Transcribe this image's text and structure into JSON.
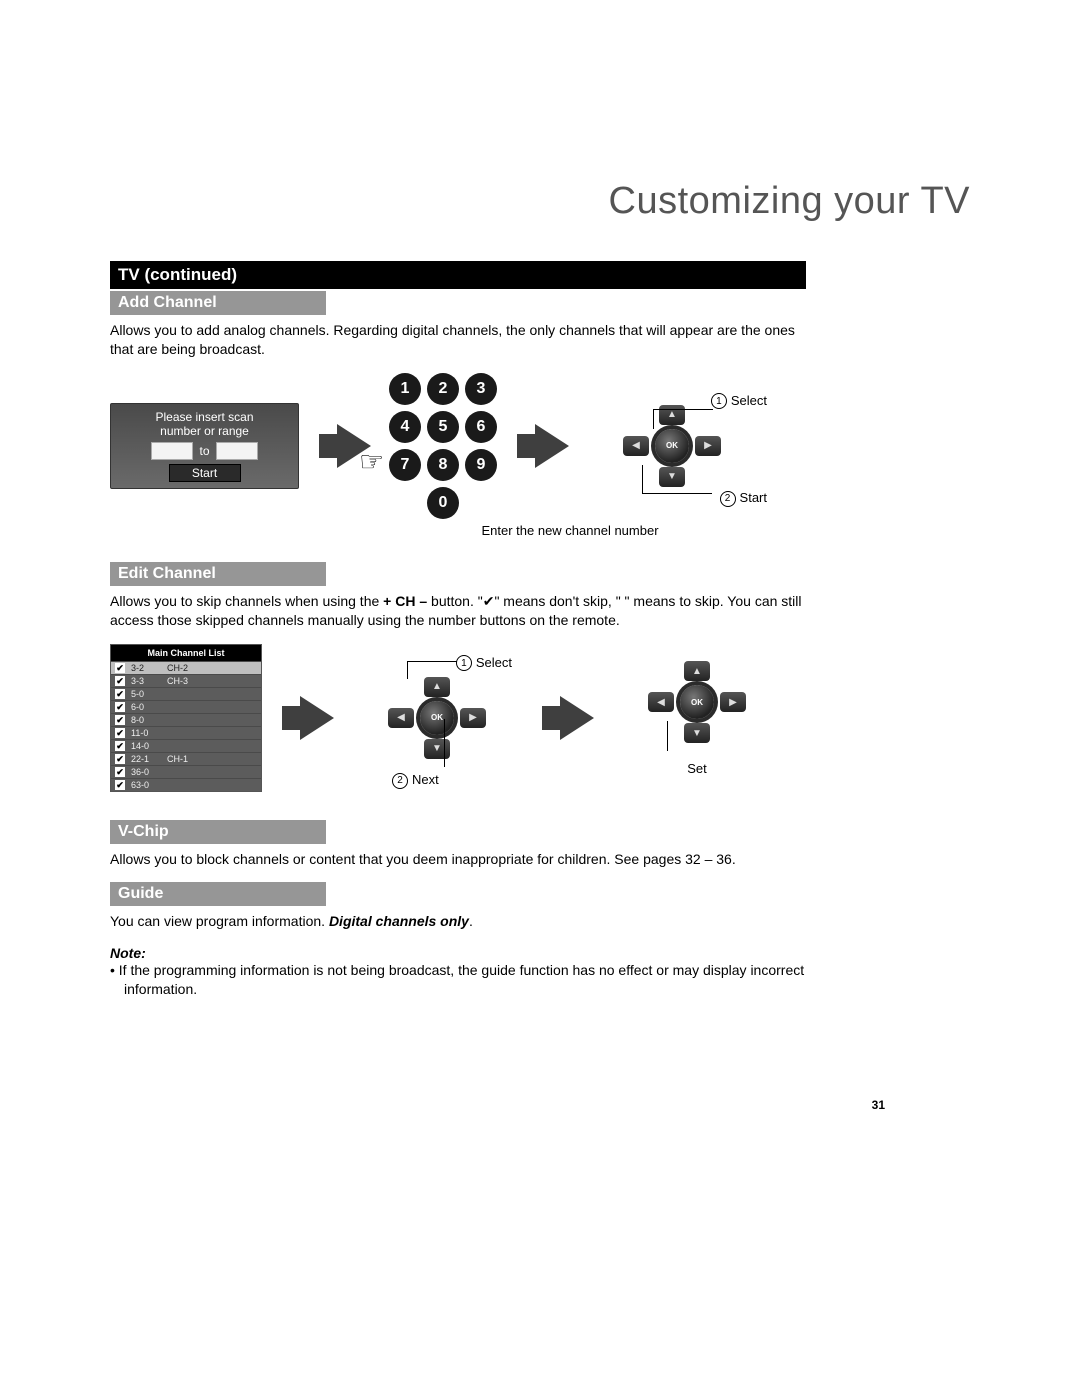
{
  "page_title": "Customizing your TV",
  "page_number": "31",
  "section_black": "TV (continued)",
  "add_channel": {
    "heading": "Add Channel",
    "body": "Allows you to add analog channels.  Regarding digital channels, the only channels that will appear are the ones that are being broadcast.",
    "dialog_line1": "Please insert scan",
    "dialog_line2": "number or range",
    "dialog_to": "to",
    "dialog_start": "Start",
    "keypad": [
      "1",
      "2",
      "3",
      "4",
      "5",
      "6",
      "7",
      "8",
      "9",
      "0"
    ],
    "keypad_caption": "Enter the new channel number",
    "dpad_select_label": "Select",
    "dpad_start_label": "Start",
    "ok_label": "OK"
  },
  "edit_channel": {
    "heading": "Edit Channel",
    "body_pre": "Allows you to skip channels when using the ",
    "body_bold": "+ CH –",
    "body_mid": " button.  \"",
    "body_check": "✔",
    "body_after_check": "\" means don't skip, \"  \" means to skip. You can still access those skipped channels manually using the number buttons on the remote.",
    "list_title": "Main Channel List",
    "rows": [
      {
        "ch": "3-2",
        "name": "CH-2",
        "hl": true
      },
      {
        "ch": "3-3",
        "name": "CH-3",
        "hl": false
      },
      {
        "ch": "5-0",
        "name": "",
        "hl": false
      },
      {
        "ch": "6-0",
        "name": "",
        "hl": false
      },
      {
        "ch": "8-0",
        "name": "",
        "hl": false
      },
      {
        "ch": "11-0",
        "name": "",
        "hl": false
      },
      {
        "ch": "14-0",
        "name": "",
        "hl": false
      },
      {
        "ch": "22-1",
        "name": "CH-1",
        "hl": false
      },
      {
        "ch": "36-0",
        "name": "",
        "hl": false
      },
      {
        "ch": "63-0",
        "name": "",
        "hl": false
      }
    ],
    "select_label": "Select",
    "next_label": "Next",
    "set_label": "Set",
    "ok_label": "OK"
  },
  "vchip": {
    "heading": "V-Chip",
    "body": "Allows you to block channels or content that you deem inappropriate for children.  See pages 32 – 36."
  },
  "guide": {
    "heading": "Guide",
    "body_plain": "You can view program information.  ",
    "body_italic": "Digital channels only",
    "body_after": ".",
    "note_label": "Note:",
    "note_bullet": "•  If the programming information is not being broadcast, the guide function has no effect or may display incorrect information."
  },
  "colors": {
    "section_black_bg": "#000000",
    "section_grey_bg": "#969696",
    "page_title_color": "#555555",
    "keypad_bg": "#1a1a1a",
    "arrow_color": "#3f3f3f",
    "dialog_bg_top": "#4a4a4a",
    "dialog_bg_bottom": "#6a6a6a",
    "channel_list_bg": "#5c5c5c",
    "hl_row_bg": "#bfbfbf"
  }
}
